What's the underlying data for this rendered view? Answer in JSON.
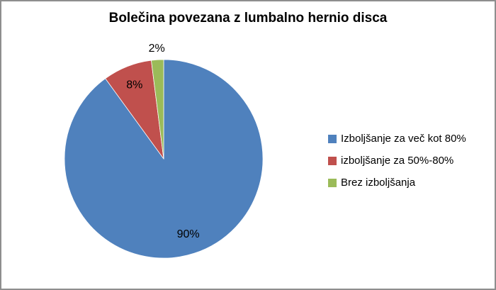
{
  "window": {
    "background": "#FFFFFF",
    "border_color": "#8E8E8E"
  },
  "chart_data": {
    "type": "pie",
    "title": "Bolečina povezana z lumbalno hernio disca",
    "categories": [
      "Izboljšanje za več kot 80%",
      "izboljšanje za 50%-80%",
      "Brez izboljšanja"
    ],
    "values": [
      90,
      8,
      2
    ],
    "data_labels": [
      "90%",
      "8%",
      "2%"
    ],
    "colors": [
      "#4F81BD",
      "#C0504D",
      "#9BBB59"
    ],
    "start_angle_deg": 0,
    "direction": "clockwise",
    "legend_position": "right",
    "labels_on_chart": true,
    "title_color": "#000000",
    "label_color": "#000000"
  }
}
